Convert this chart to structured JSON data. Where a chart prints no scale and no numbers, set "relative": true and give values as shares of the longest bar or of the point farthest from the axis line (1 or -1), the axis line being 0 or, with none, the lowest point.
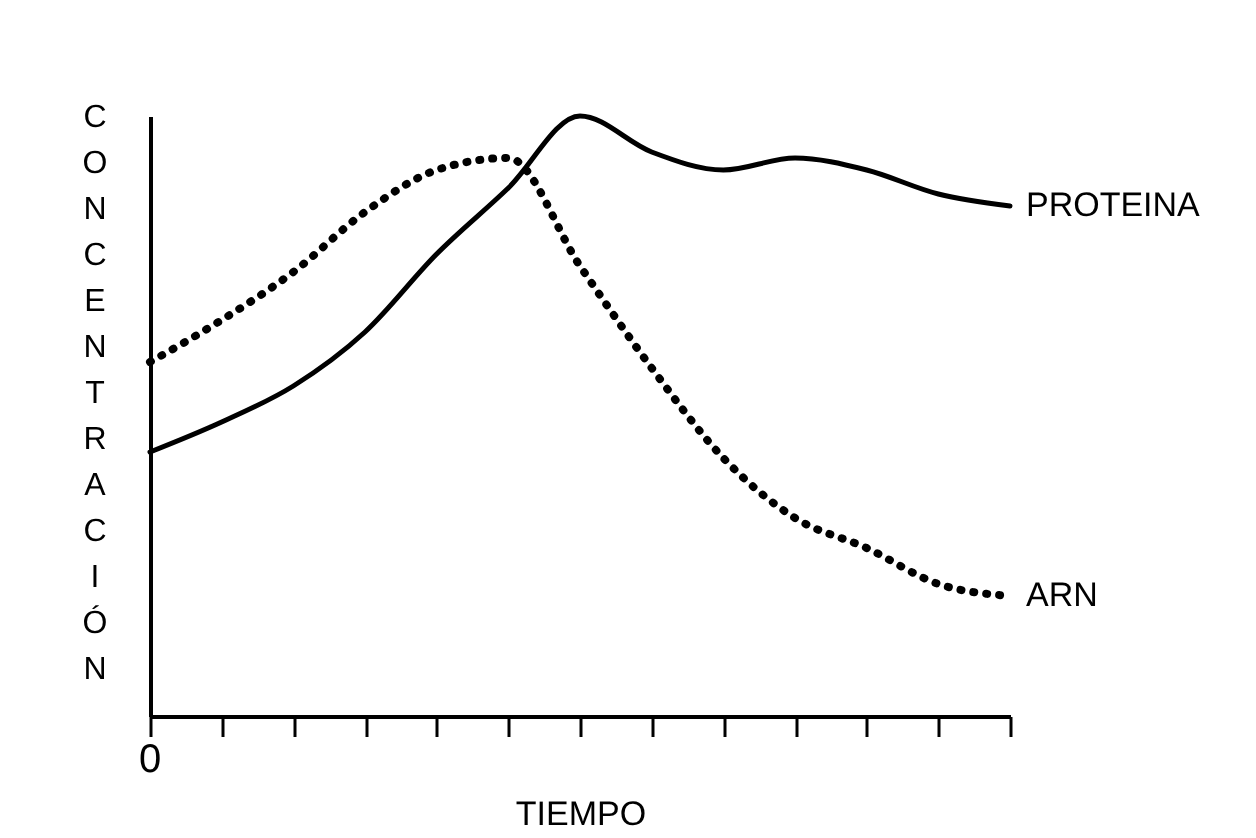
{
  "chart_data": {
    "type": "line",
    "relative": true,
    "xlabel": "TIEMPO",
    "ylabel": "CONCENTRACIÓN",
    "categories": [
      null,
      null,
      null,
      null,
      null,
      null,
      null,
      null,
      null,
      null,
      null,
      null,
      null
    ],
    "annotations": [
      "0"
    ],
    "series": [
      {
        "name": "PROTEINA",
        "color": "#000000",
        "line_style": "solid",
        "values": [
          0.44,
          0.49,
          0.55,
          0.64,
          0.77,
          0.88,
          1.0,
          0.94,
          0.91,
          0.93,
          0.91,
          0.87,
          0.85
        ]
      },
      {
        "name": "ARN",
        "color": "#000000",
        "line_style": "dotted",
        "values": [
          0.59,
          0.66,
          0.74,
          0.84,
          0.91,
          0.93,
          0.75,
          0.58,
          0.43,
          0.33,
          0.28,
          0.22,
          0.2
        ]
      }
    ]
  }
}
